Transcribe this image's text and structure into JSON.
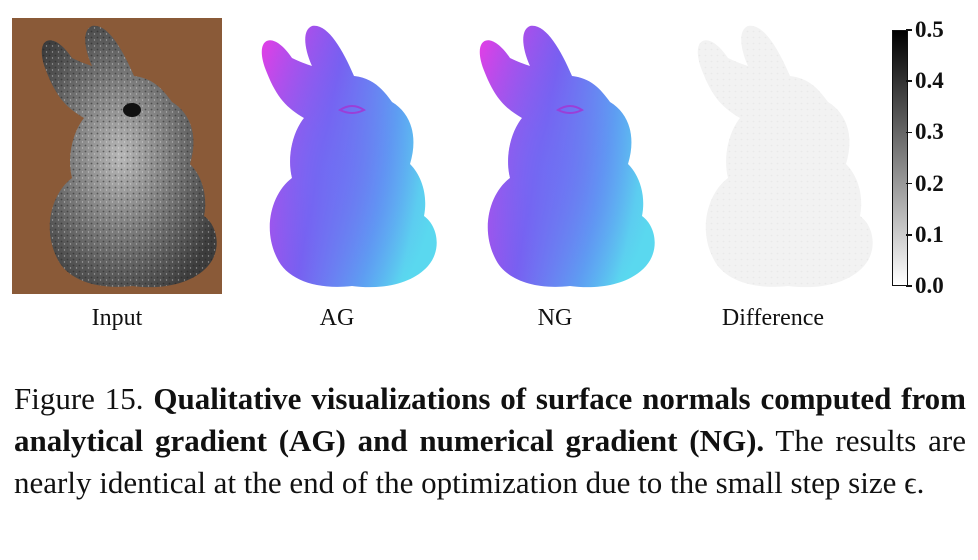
{
  "figure": {
    "panels": [
      {
        "id": "input",
        "label": "Input"
      },
      {
        "id": "ag",
        "label": "AG"
      },
      {
        "id": "ng",
        "label": "NG"
      },
      {
        "id": "diff",
        "label": "Difference"
      }
    ],
    "colorbar": {
      "ticks": [
        "0.5",
        "0.4",
        "0.3",
        "0.2",
        "0.1",
        "0.0"
      ],
      "range": [
        0.0,
        0.5
      ],
      "colormap": "white-to-black"
    }
  },
  "caption": {
    "prefix": "Figure 15.",
    "bold": "Qualitative visualizations of surface normals computed from analytical gradient (AG) and numerical gradient (NG).",
    "rest": "The results are nearly identical at the end of the optimization due to the small step size ϵ."
  },
  "colors": {
    "background_photo": "#8a5a38",
    "normal_magenta": "#e040e8",
    "normal_blue": "#6a6cf2",
    "normal_cyan": "#55d2f0"
  }
}
